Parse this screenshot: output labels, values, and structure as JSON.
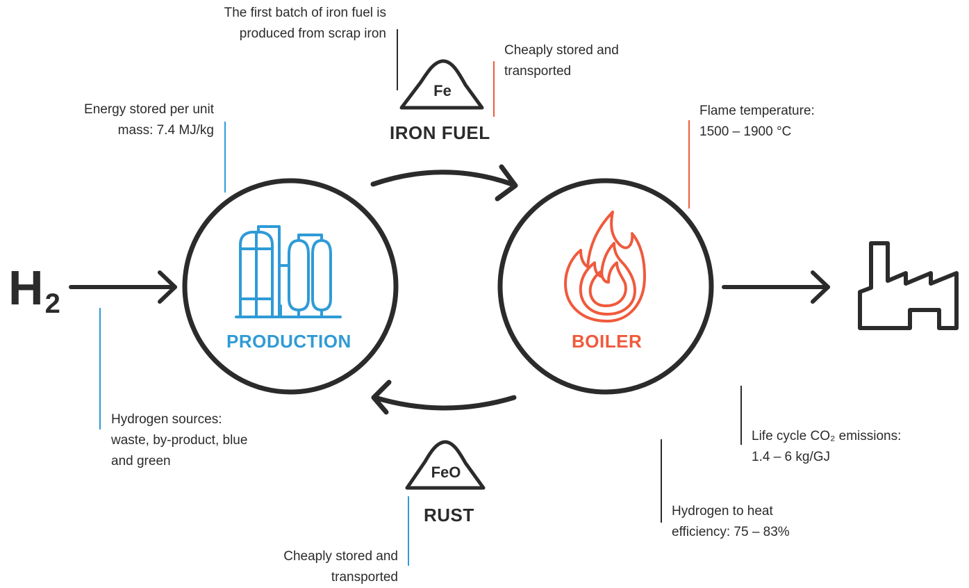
{
  "colors": {
    "dark": "#2b2b2b",
    "blue": "#2f9bd6",
    "red": "#ef5a3c"
  },
  "input": {
    "symbol": "H",
    "subscript": "2"
  },
  "production": {
    "label": "PRODUCTION",
    "icon": "factory-tanks-icon"
  },
  "boiler": {
    "label": "BOILER",
    "icon": "flame-icon"
  },
  "iron_fuel": {
    "symbol": "Fe",
    "label": "IRON FUEL"
  },
  "rust": {
    "symbol": "FeO",
    "label": "RUST"
  },
  "output": {
    "icon": "factory-icon"
  },
  "annotations": {
    "scrap_line1": "The first batch of iron fuel is",
    "scrap_line2": "produced from scrap iron",
    "fuel_store_line1": "Cheaply stored and",
    "fuel_store_line2": "transported",
    "energy_line1": "Energy stored per unit",
    "energy_line2": "mass: 7.4 MJ/kg",
    "flame_line1": "Flame temperature:",
    "flame_line2": "1500 – 1900 °C",
    "hydrogen_line1": "Hydrogen sources:",
    "hydrogen_line2": "waste, by-product, blue",
    "hydrogen_line3": "and green",
    "co2_line1": "Life cycle CO₂ emissions:",
    "co2_line2": "1.4 – 6 kg/GJ",
    "efficiency_line1": "Hydrogen to heat",
    "efficiency_line2": "efficiency: 75 – 83%",
    "rust_store_line1": "Cheaply stored and",
    "rust_store_line2": "transported"
  }
}
